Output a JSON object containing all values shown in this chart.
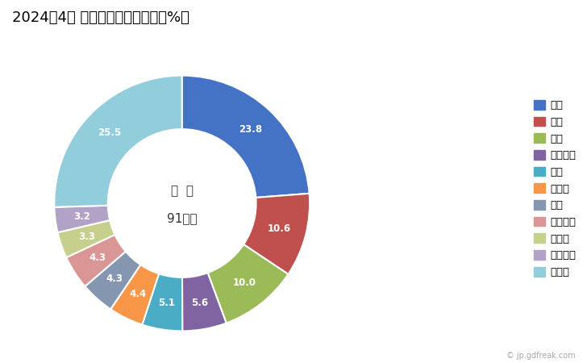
{
  "title": "2024年4月 輸出相手国のシェア（%）",
  "center_text_line1": "総  額",
  "center_text_line2": "91億円",
  "labels": [
    "米国",
    "英国",
    "中国",
    "イタリア",
    "韓国",
    "トルコ",
    "タイ",
    "オランダ",
    "インド",
    "スペイン",
    "その他"
  ],
  "values": [
    23.8,
    10.6,
    10.0,
    5.6,
    5.1,
    4.4,
    4.3,
    4.3,
    3.3,
    3.2,
    25.5
  ],
  "colors": [
    "#4472C4",
    "#C0504D",
    "#9BBB59",
    "#8064A2",
    "#4BACC6",
    "#F79646",
    "#8496B0",
    "#D99694",
    "#C6D08C",
    "#B3A2C7",
    "#92CDDC"
  ],
  "wedge_label_values": [
    "23.8",
    "10.6",
    "10.0",
    "5.6",
    "5.1",
    "4.4",
    "4.3",
    "4.3",
    "3.3",
    "3.2",
    "25.5"
  ],
  "donut_width": 0.42,
  "title_fontsize": 13,
  "label_fontsize": 9,
  "legend_fontsize": 9.5,
  "background_color": "#ffffff"
}
